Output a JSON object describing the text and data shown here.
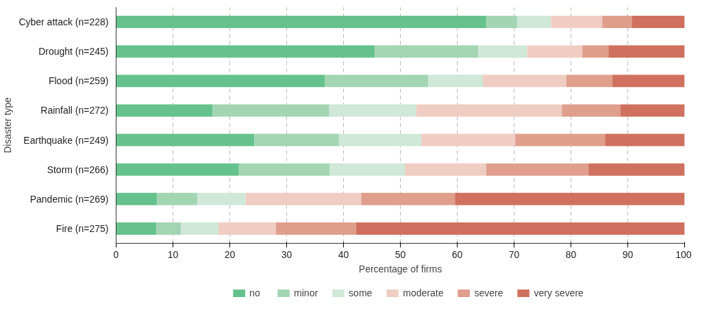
{
  "chart_data": {
    "type": "bar",
    "orientation": "horizontal",
    "stacked": true,
    "xlabel": "Percentage of firms",
    "ylabel": "Disaster type",
    "categories": [
      "Cyber attack (n=228)",
      "Drought (n=245)",
      "Flood (n=259)",
      "Rainfall (n=272)",
      "Earthquake (n=249)",
      "Storm (n=266)",
      "Pandemic (n=269)",
      "Fire (n=275)"
    ],
    "series": [
      {
        "name": "no",
        "color": "#66c28c",
        "values": [
          65.1,
          45.5,
          36.7,
          17.0,
          24.3,
          21.6,
          7.2,
          7.1
        ]
      },
      {
        "name": "minor",
        "color": "#a3d5b3",
        "values": [
          5.5,
          18.2,
          18.2,
          20.5,
          14.9,
          16.0,
          7.1,
          4.3
        ]
      },
      {
        "name": "some",
        "color": "#cfe8d8",
        "values": [
          5.9,
          8.6,
          9.6,
          15.3,
          14.5,
          13.2,
          8.5,
          6.6
        ]
      },
      {
        "name": "moderate",
        "color": "#f0cdc2",
        "values": [
          9.0,
          9.7,
          14.7,
          25.6,
          16.5,
          14.3,
          20.3,
          10.1
        ]
      },
      {
        "name": "severe",
        "color": "#e09e8c",
        "values": [
          5.2,
          4.6,
          8.1,
          10.3,
          15.8,
          18.0,
          16.5,
          14.1
        ]
      },
      {
        "name": "very severe",
        "color": "#d0705e",
        "values": [
          9.3,
          13.4,
          12.7,
          11.3,
          14.0,
          16.9,
          40.4,
          57.8
        ]
      }
    ],
    "xlim": [
      0,
      100
    ],
    "xticks": [
      0,
      10,
      20,
      30,
      40,
      50,
      60,
      70,
      80,
      90,
      100
    ],
    "grid": "x",
    "legend": "bottom"
  }
}
